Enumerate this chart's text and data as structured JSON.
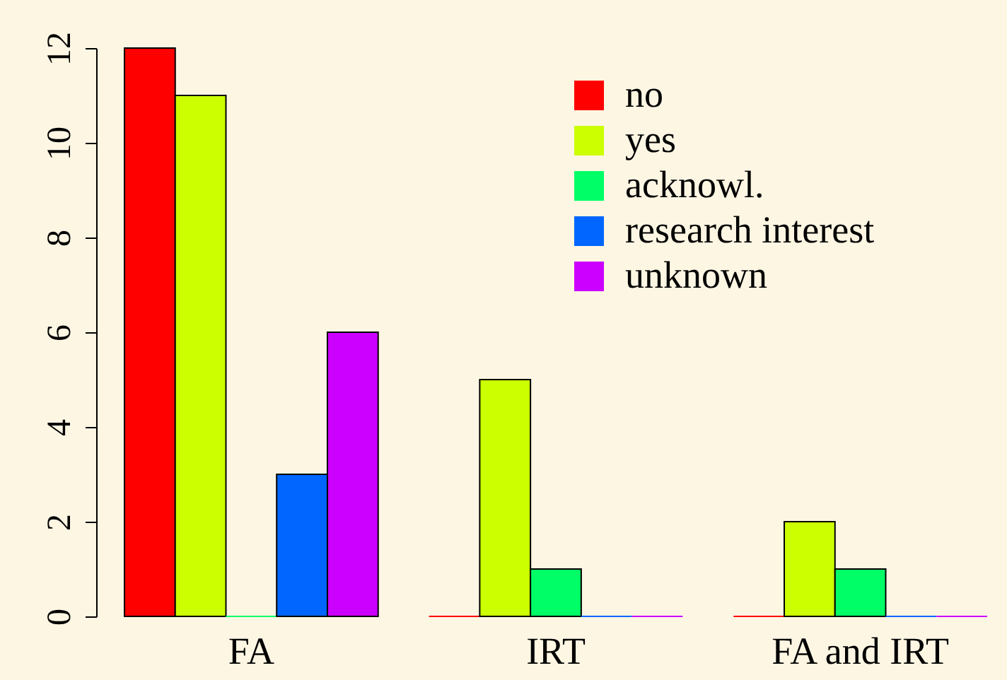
{
  "chart_data": {
    "type": "bar",
    "categories": [
      "FA",
      "IRT",
      "FA and IRT"
    ],
    "series": [
      {
        "name": "no",
        "color": "#ff0000",
        "values": [
          12,
          0,
          0
        ]
      },
      {
        "name": "yes",
        "color": "#ccff00",
        "values": [
          11,
          5,
          2
        ]
      },
      {
        "name": "acknowl.",
        "color": "#00ff66",
        "values": [
          0,
          1,
          1
        ]
      },
      {
        "name": "research interest",
        "color": "#0066ff",
        "values": [
          3,
          0,
          0
        ]
      },
      {
        "name": "unknown",
        "color": "#cc00ff",
        "values": [
          6,
          0,
          0
        ]
      }
    ],
    "ylim": [
      0,
      12
    ],
    "yticks": [
      0,
      2,
      4,
      6,
      8,
      10,
      12
    ],
    "grid": false,
    "legend": "top right"
  }
}
